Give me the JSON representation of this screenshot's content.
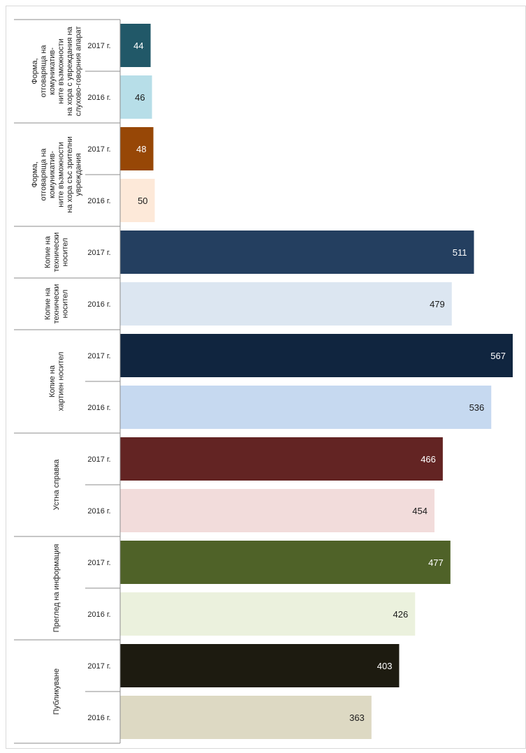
{
  "chart_data": {
    "type": "bar",
    "orientation": "horizontal",
    "title": "",
    "xlabel": "",
    "ylabel": "",
    "xlim": [
      0,
      567
    ],
    "grid": false,
    "legend": "none",
    "groups": [
      {
        "label_lines": [
          "Форма,",
          "отговаряща на",
          "комуникатив-",
          "ните възможности",
          "на хора с увреждания на",
          "слухово-говорния апарат"
        ],
        "bars": [
          {
            "year": "2017 г.",
            "value": 44,
            "color": "#215868",
            "label_color": "#ffffff"
          },
          {
            "year": "2016 г.",
            "value": 46,
            "color": "#b7dee8",
            "label_color": "#1a1a1a"
          }
        ]
      },
      {
        "label_lines": [
          "Форма,",
          "отговаряща на",
          "комуникатив-",
          "ните възможности",
          "на хора със зрителни",
          "увреждания"
        ],
        "bars": [
          {
            "year": "2017 г.",
            "value": 48,
            "color": "#974706",
            "label_color": "#ffffff"
          },
          {
            "year": "2016 г.",
            "value": 50,
            "color": "#fde9d9",
            "label_color": "#1a1a1a"
          }
        ]
      },
      {
        "label_lines": [
          "Копие на",
          "технически",
          "носител"
        ],
        "bars": [
          {
            "year": "2017 г.",
            "value": 511,
            "color": "#243f60",
            "label_color": "#ffffff"
          }
        ]
      },
      {
        "label_lines": [
          "Копие на",
          "технически",
          "носител"
        ],
        "bars": [
          {
            "year": "2016 г.",
            "value": 479,
            "color": "#dce6f1",
            "label_color": "#1a1a1a"
          }
        ]
      },
      {
        "label_lines": [
          "Копие на",
          "хартиен носител"
        ],
        "bars": [
          {
            "year": "2017 г.",
            "value": 567,
            "color": "#10253f",
            "label_color": "#ffffff"
          },
          {
            "year": "2016 г.",
            "value": 536,
            "color": "#c6d9f0",
            "label_color": "#1a1a1a"
          }
        ]
      },
      {
        "label_lines": [
          "Устна справка"
        ],
        "bars": [
          {
            "year": "2017 г.",
            "value": 466,
            "color": "#632423",
            "label_color": "#ffffff"
          },
          {
            "year": "2016 г.",
            "value": 454,
            "color": "#f2dcdb",
            "label_color": "#1a1a1a"
          }
        ]
      },
      {
        "label_lines": [
          "Преглед на информация"
        ],
        "bars": [
          {
            "year": "2017 г.",
            "value": 477,
            "color": "#4f6228",
            "label_color": "#ffffff"
          },
          {
            "year": "2016 г.",
            "value": 426,
            "color": "#ebf1dd",
            "label_color": "#1a1a1a"
          }
        ]
      },
      {
        "label_lines": [
          "Публикуване"
        ],
        "bars": [
          {
            "year": "2017 г.",
            "value": 403,
            "color": "#1d1b10",
            "label_color": "#ffffff"
          },
          {
            "year": "2016 г.",
            "value": 363,
            "color": "#ddd9c3",
            "label_color": "#1a1a1a"
          }
        ]
      }
    ]
  }
}
